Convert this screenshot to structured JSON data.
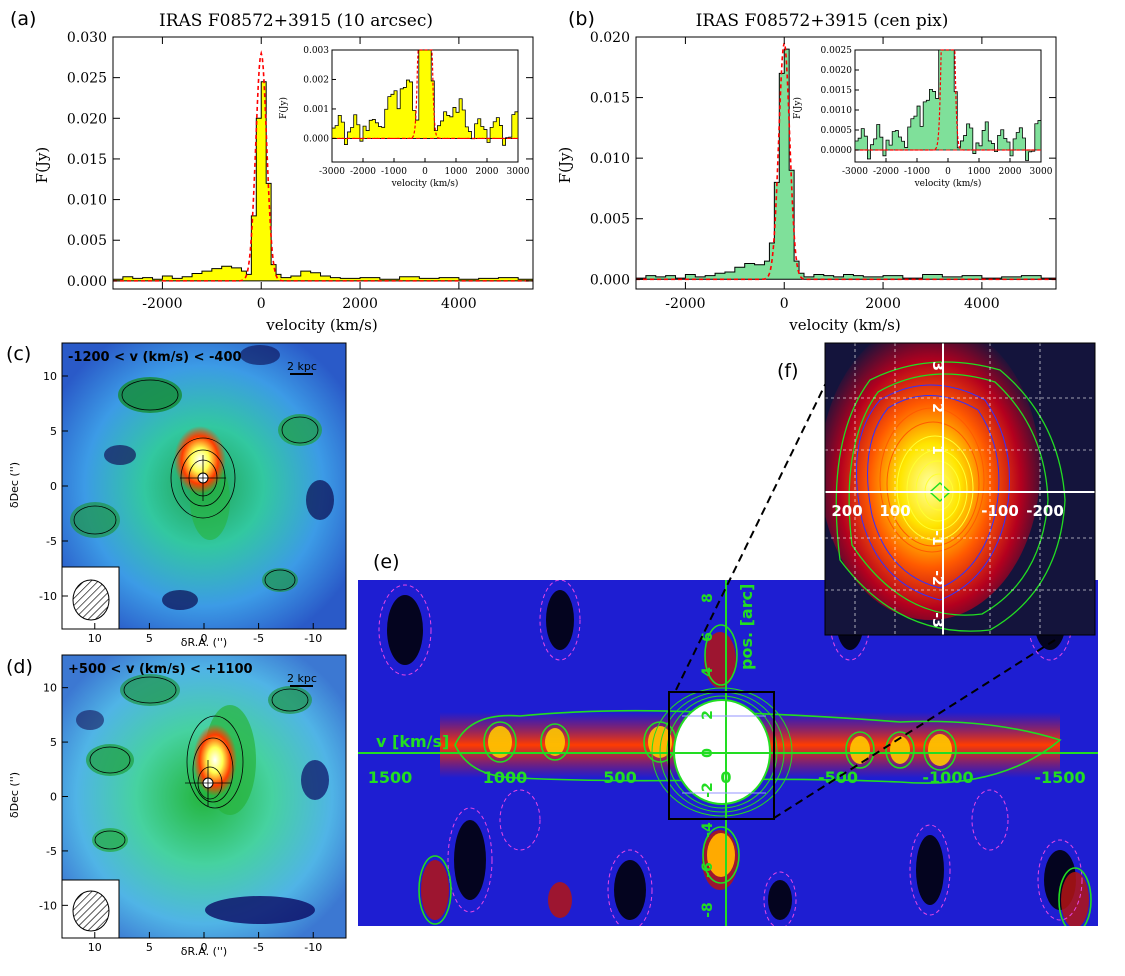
{
  "panel_labels": {
    "a": "(a)",
    "b": "(b)",
    "c": "(c)",
    "d": "(d)",
    "e": "(e)",
    "f": "(f)"
  },
  "colors": {
    "fill_a": "#ffff00",
    "fill_b": "#7fe09a",
    "model": "#ff0000",
    "contour": "#22dd22"
  },
  "chart_data": [
    {
      "id": "a",
      "type": "area",
      "title": "IRAS F08572+3915 (10 arcsec)",
      "xlabel": "velocity (km/s)",
      "ylabel": "F(Jy)",
      "xlim": [
        -3000,
        5500
      ],
      "ylim": [
        -0.001,
        0.03
      ],
      "xticks": [
        "-2000",
        "0",
        "2000",
        "4000"
      ],
      "yticks": [
        "0.000",
        "0.005",
        "0.010",
        "0.015",
        "0.020",
        "0.025",
        "0.030"
      ],
      "x": [
        -3000,
        -2800,
        -2600,
        -2400,
        -2200,
        -2000,
        -1800,
        -1600,
        -1400,
        -1200,
        -1000,
        -800,
        -600,
        -400,
        -300,
        -200,
        -100,
        0,
        100,
        200,
        300,
        400,
        600,
        800,
        1000,
        1200,
        1400,
        1600,
        2000,
        2400,
        2800,
        3200,
        3600,
        4000,
        4400,
        4800,
        5200,
        5500
      ],
      "y": [
        0.0002,
        0.0005,
        0.0003,
        0.0004,
        0.0002,
        0.0006,
        0.0003,
        0.0005,
        0.0009,
        0.0012,
        0.0015,
        0.0018,
        0.0016,
        0.0012,
        0.0008,
        0.008,
        0.02,
        0.0245,
        0.012,
        0.002,
        0.0008,
        0.0004,
        0.0006,
        0.0012,
        0.001,
        0.0006,
        0.0004,
        0.0003,
        0.0004,
        0.0002,
        0.0005,
        0.0003,
        0.0004,
        0.0002,
        0.0003,
        0.0004,
        0.0002,
        0.0003
      ],
      "model_peak": 0.028,
      "inset": {
        "xlabel": "velocity (km/s)",
        "ylabel": "F(Jy)",
        "xlim": [
          -3000,
          3000
        ],
        "ylim": [
          -0.0008,
          0.003
        ],
        "xticks": [
          "-3000",
          "-2000",
          "-1000",
          "0",
          "1000",
          "2000",
          "3000"
        ],
        "yticks": [
          "0.000",
          "0.001",
          "0.002",
          "0.003"
        ]
      }
    },
    {
      "id": "b",
      "type": "area",
      "title": "IRAS F08572+3915 (cen pix)",
      "xlabel": "velocity (km/s)",
      "ylabel": "F(Jy)",
      "xlim": [
        -3000,
        5500
      ],
      "ylim": [
        -0.0008,
        0.02
      ],
      "xticks": [
        "-2000",
        "0",
        "2000",
        "4000"
      ],
      "yticks": [
        "0.000",
        "0.005",
        "0.010",
        "0.015",
        "0.020"
      ],
      "x": [
        -3000,
        -2800,
        -2600,
        -2400,
        -2200,
        -2000,
        -1800,
        -1600,
        -1400,
        -1200,
        -1000,
        -800,
        -600,
        -400,
        -300,
        -200,
        -100,
        0,
        100,
        200,
        300,
        400,
        600,
        800,
        1000,
        1200,
        1400,
        1600,
        2000,
        2400,
        2800,
        3200,
        3600,
        4000,
        4400,
        4800,
        5200,
        5500
      ],
      "y": [
        0.0001,
        0.0003,
        0.0002,
        0.0003,
        0.0001,
        0.0004,
        0.0002,
        0.0003,
        0.0005,
        0.0006,
        0.001,
        0.0013,
        0.0012,
        0.0015,
        0.003,
        0.008,
        0.017,
        0.019,
        0.009,
        0.0015,
        0.0005,
        0.0002,
        0.0004,
        0.0003,
        0.0002,
        0.0004,
        0.0003,
        0.0002,
        0.0003,
        0.0001,
        0.0004,
        0.0002,
        0.0003,
        0.0001,
        0.0002,
        0.0003,
        0.0001,
        0.0002
      ],
      "model_peak": 0.0195,
      "inset": {
        "xlabel": "velocity (km/s)",
        "ylabel": "F(Jy)",
        "xlim": [
          -3000,
          3000
        ],
        "ylim": [
          -0.0003,
          0.0025
        ],
        "xticks": [
          "-3000",
          "-2000",
          "-1000",
          "0",
          "1000",
          "2000",
          "3000"
        ],
        "yticks": [
          "0.0000",
          "0.0005",
          "0.0010",
          "0.0015",
          "0.0020",
          "0.0025"
        ]
      }
    },
    {
      "id": "c",
      "type": "heatmap",
      "label": "-1200 < v (km/s) < -400",
      "scalebar": "2 kpc",
      "xlabel": "δR.A. ('')",
      "ylabel": "δDec ('')",
      "xlim": [
        13,
        -13
      ],
      "ylim": [
        -13,
        13
      ],
      "xticks": [
        "10",
        "5",
        "0",
        "-5",
        "-10"
      ],
      "yticks": [
        "10",
        "5",
        "0",
        "-5",
        "-10"
      ]
    },
    {
      "id": "d",
      "type": "heatmap",
      "label": "+500 < v (km/s) < +1100",
      "scalebar": "2 kpc",
      "xlabel": "δR.A. ('')",
      "ylabel": "δDec ('')",
      "xlim": [
        13,
        -13
      ],
      "ylim": [
        -13,
        13
      ],
      "xticks": [
        "10",
        "5",
        "0",
        "-5",
        "-10"
      ],
      "yticks": [
        "10",
        "5",
        "0",
        "-5",
        "-10"
      ]
    },
    {
      "id": "e",
      "type": "heatmap",
      "xaxis_label": "v [km/s]",
      "yaxis_label": "pos. [arc]",
      "xticks": [
        "1500",
        "1000",
        "500",
        "0",
        "-500",
        "-1000",
        "-1500"
      ],
      "yticks": [
        "8",
        "6",
        "4",
        "2",
        "0",
        "-2",
        "-4",
        "-6",
        "-8"
      ]
    },
    {
      "id": "f",
      "type": "heatmap",
      "xticks": [
        "200",
        "100",
        "-100",
        "-200"
      ],
      "yticks": [
        "3",
        "2",
        "1",
        "-1",
        "-2",
        "-3"
      ]
    }
  ]
}
